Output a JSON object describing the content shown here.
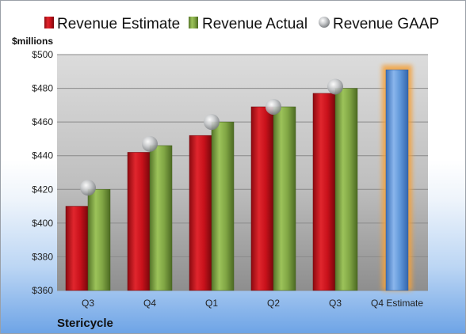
{
  "chart_data": {
    "type": "bar",
    "categories": [
      "Q3",
      "Q4",
      "Q1",
      "Q2",
      "Q3",
      "Q4 Estimate"
    ],
    "series": [
      {
        "name": "Revenue Estimate",
        "values": [
          410,
          442,
          452,
          469,
          477,
          null
        ],
        "color": "#c8111b"
      },
      {
        "name": "Revenue Actual",
        "values": [
          420,
          446,
          460,
          469,
          480,
          null
        ],
        "color": "#7ea342"
      },
      {
        "name": "Revenue GAAP",
        "values": [
          421,
          447,
          460,
          469,
          481,
          null
        ],
        "color": "#b9bbbd",
        "marker": "circle"
      },
      {
        "name": "Q4 Estimate",
        "values": [
          null,
          null,
          null,
          null,
          null,
          491
        ],
        "color": "#5e95d8",
        "highlight": "#f4a13a"
      }
    ],
    "ylabel": "$millions",
    "ylim": [
      360,
      500
    ],
    "yticks": [
      "$360",
      "$380",
      "$400",
      "$420",
      "$440",
      "$460",
      "$480",
      "$500"
    ],
    "grid": true,
    "legend_position": "top",
    "company": "Stericycle"
  }
}
